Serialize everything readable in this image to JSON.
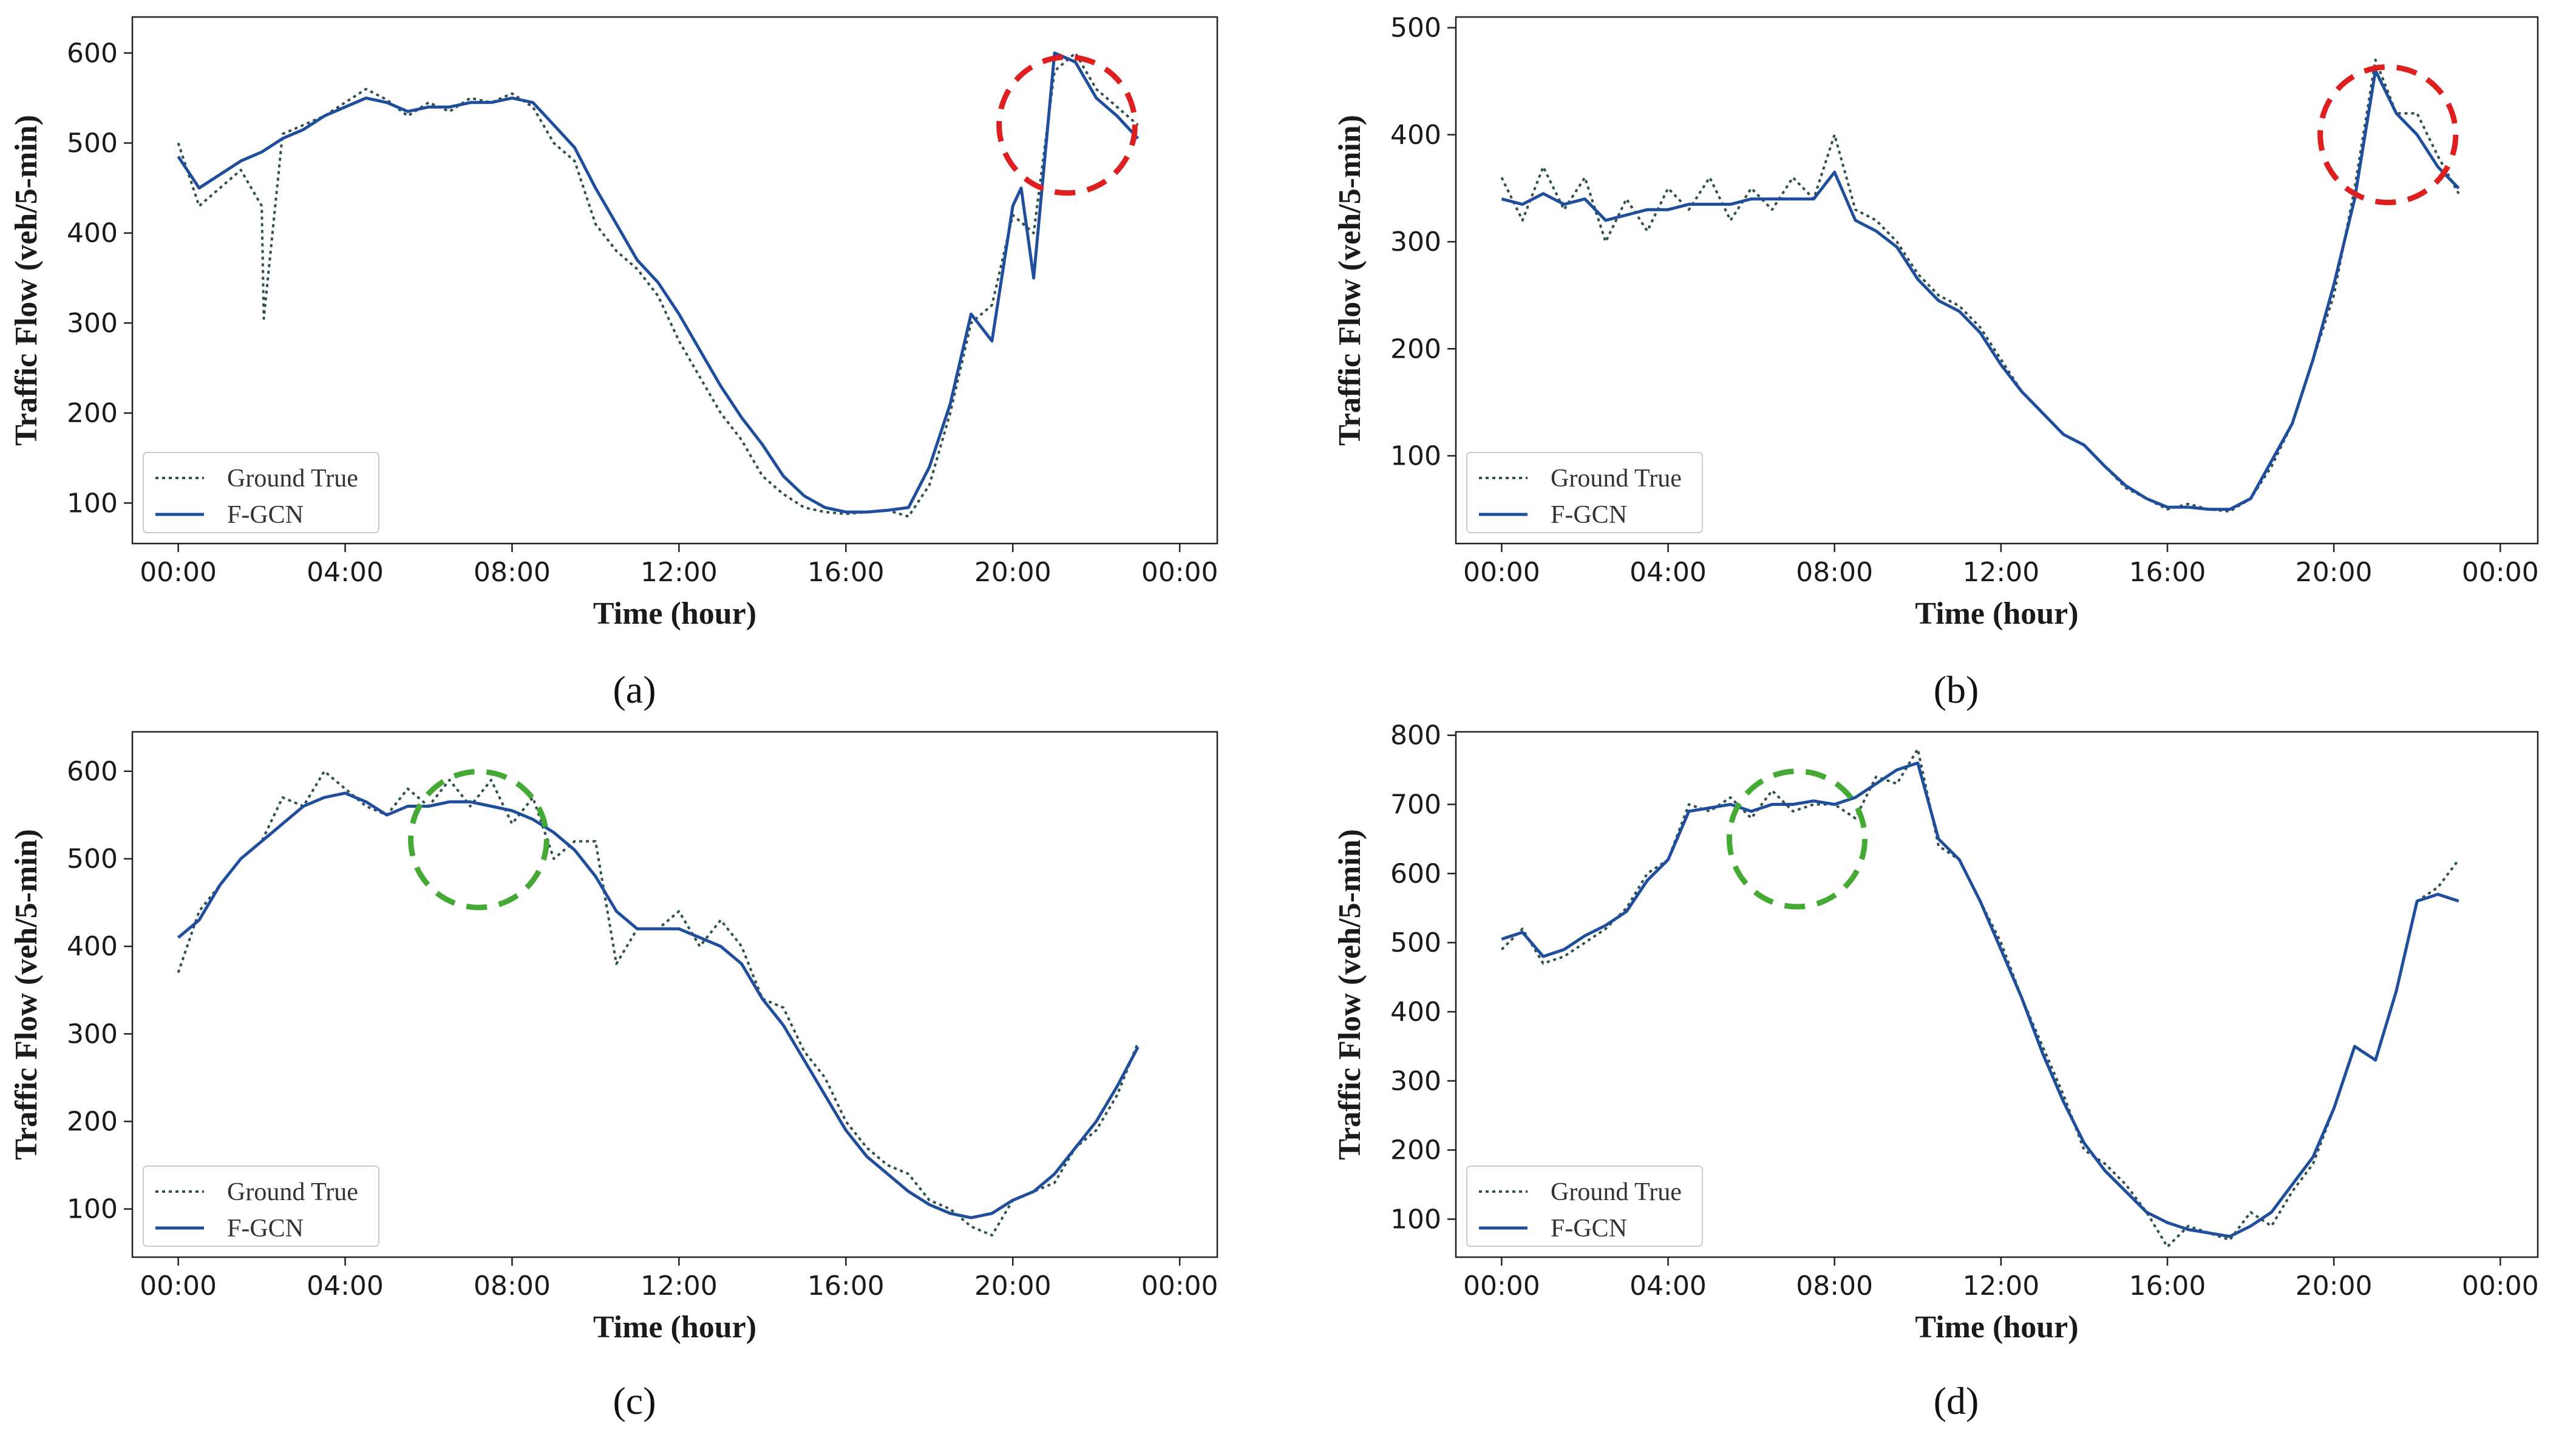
{
  "figure": {
    "colors": {
      "ground_true": "#2f4f4f",
      "fgcn": "#1f4e9c",
      "highlight_red": "#dd1f1f",
      "highlight_green": "#44aa33",
      "axes": "#222222"
    }
  },
  "chart_data": [
    {
      "panel": "a",
      "caption": "(a)",
      "type": "line",
      "xlabel": "Time (hour)",
      "ylabel": "Traffic Flow (veh/5-min)",
      "x_unit": "hour",
      "xlim": [
        -1.1,
        24.9
      ],
      "ylim": [
        55,
        640
      ],
      "xticks": [
        0,
        4,
        8,
        12,
        16,
        20,
        24
      ],
      "xtick_labels": [
        "00:00",
        "04:00",
        "08:00",
        "12:00",
        "16:00",
        "20:00",
        "00:00"
      ],
      "yticks": [
        100,
        200,
        300,
        400,
        500,
        600
      ],
      "ytick_labels": [
        "100",
        "200",
        "300",
        "400",
        "500",
        "600"
      ],
      "legend": {
        "position": "lower-left",
        "entries": [
          "Ground True",
          "F-GCN"
        ]
      },
      "highlight": {
        "type": "dashed-circle",
        "color": "red",
        "center": [
          21.3,
          520
        ],
        "radius_hours": 2.2
      },
      "series": [
        {
          "name": "Ground True",
          "style": "dotted",
          "x": [
            0,
            0.5,
            1,
            1.5,
            2,
            2.05,
            2.5,
            3,
            3.5,
            4,
            4.5,
            5,
            5.5,
            6,
            6.5,
            7,
            7.5,
            8,
            8.5,
            9,
            9.5,
            10,
            10.5,
            11,
            11.5,
            12,
            12.5,
            13,
            13.5,
            14,
            14.5,
            15,
            15.5,
            16,
            16.5,
            17,
            17.5,
            18,
            18.5,
            19,
            19.5,
            20,
            20.5,
            21,
            21.5,
            22,
            22.5,
            23
          ],
          "y": [
            500,
            430,
            450,
            470,
            430,
            305,
            510,
            520,
            530,
            545,
            560,
            548,
            530,
            545,
            535,
            550,
            545,
            555,
            540,
            500,
            480,
            410,
            380,
            360,
            330,
            280,
            240,
            200,
            170,
            130,
            110,
            95,
            90,
            88,
            90,
            92,
            85,
            120,
            200,
            300,
            320,
            420,
            400,
            580,
            600,
            560,
            540,
            520
          ]
        },
        {
          "name": "F-GCN",
          "style": "solid",
          "x": [
            0,
            0.5,
            1,
            1.5,
            2,
            2.5,
            3,
            3.5,
            4,
            4.5,
            5,
            5.5,
            6,
            6.5,
            7,
            7.5,
            8,
            8.5,
            9,
            9.5,
            10,
            10.5,
            11,
            11.5,
            12,
            12.5,
            13,
            13.5,
            14,
            14.5,
            15,
            15.5,
            16,
            16.5,
            17,
            17.5,
            18,
            18.5,
            19,
            19.5,
            20,
            20.2,
            20.5,
            21,
            21.5,
            22,
            22.5,
            23
          ],
          "y": [
            485,
            450,
            465,
            480,
            490,
            505,
            515,
            530,
            540,
            550,
            545,
            535,
            540,
            540,
            545,
            545,
            550,
            545,
            520,
            495,
            450,
            410,
            370,
            345,
            310,
            270,
            230,
            195,
            165,
            130,
            108,
            95,
            90,
            90,
            92,
            95,
            140,
            210,
            310,
            280,
            430,
            450,
            350,
            600,
            590,
            550,
            530,
            505
          ]
        }
      ]
    },
    {
      "panel": "b",
      "caption": "(b)",
      "type": "line",
      "xlabel": "Time (hour)",
      "ylabel": "Traffic Flow (veh/5-min)",
      "x_unit": "hour",
      "xlim": [
        -1.1,
        24.9
      ],
      "ylim": [
        18,
        510
      ],
      "xticks": [
        0,
        4,
        8,
        12,
        16,
        20,
        24
      ],
      "xtick_labels": [
        "00:00",
        "04:00",
        "08:00",
        "12:00",
        "16:00",
        "20:00",
        "00:00"
      ],
      "yticks": [
        100,
        200,
        300,
        400,
        500
      ],
      "ytick_labels": [
        "100",
        "200",
        "300",
        "400",
        "500"
      ],
      "legend": {
        "position": "lower-left",
        "entries": [
          "Ground True",
          "F-GCN"
        ]
      },
      "highlight": {
        "type": "dashed-circle",
        "color": "red",
        "center": [
          21.3,
          400
        ],
        "radius_hours": 2.2
      },
      "series": [
        {
          "name": "Ground True",
          "style": "dotted",
          "x": [
            0,
            0.5,
            1,
            1.5,
            2,
            2.5,
            3,
            3.5,
            4,
            4.5,
            5,
            5.5,
            6,
            6.5,
            7,
            7.5,
            8,
            8.5,
            9,
            9.5,
            10,
            10.5,
            11,
            11.5,
            12,
            12.5,
            13,
            13.5,
            14,
            14.5,
            15,
            15.5,
            16,
            16.5,
            17,
            17.5,
            18,
            18.5,
            19,
            19.5,
            20,
            20.5,
            21,
            21.5,
            22,
            22.5,
            23
          ],
          "y": [
            360,
            320,
            370,
            330,
            360,
            300,
            340,
            310,
            350,
            330,
            360,
            320,
            350,
            330,
            360,
            340,
            400,
            330,
            320,
            300,
            270,
            250,
            240,
            220,
            190,
            160,
            140,
            120,
            110,
            90,
            70,
            60,
            50,
            55,
            50,
            48,
            60,
            90,
            130,
            190,
            250,
            350,
            470,
            420,
            420,
            380,
            345
          ]
        },
        {
          "name": "F-GCN",
          "style": "solid",
          "x": [
            0,
            0.5,
            1,
            1.5,
            2,
            2.5,
            3,
            3.5,
            4,
            4.5,
            5,
            5.5,
            6,
            6.5,
            7,
            7.5,
            8,
            8.5,
            9,
            9.5,
            10,
            10.5,
            11,
            11.5,
            12,
            12.5,
            13,
            13.5,
            14,
            14.5,
            15,
            15.5,
            16,
            16.5,
            17,
            17.5,
            18,
            18.5,
            19,
            19.5,
            20,
            20.5,
            21,
            21.5,
            22,
            22.5,
            23
          ],
          "y": [
            340,
            335,
            345,
            335,
            340,
            320,
            325,
            330,
            330,
            335,
            335,
            335,
            340,
            340,
            340,
            340,
            365,
            320,
            310,
            295,
            265,
            245,
            235,
            215,
            185,
            160,
            140,
            120,
            110,
            90,
            72,
            60,
            52,
            52,
            50,
            50,
            60,
            95,
            130,
            190,
            260,
            340,
            460,
            420,
            400,
            370,
            350
          ]
        }
      ]
    },
    {
      "panel": "c",
      "caption": "(c)",
      "type": "line",
      "xlabel": "Time (hour)",
      "ylabel": "Traffic Flow (veh/5-min)",
      "x_unit": "hour",
      "xlim": [
        -1.1,
        24.9
      ],
      "ylim": [
        45,
        645
      ],
      "xticks": [
        0,
        4,
        8,
        12,
        16,
        20,
        24
      ],
      "xtick_labels": [
        "00:00",
        "04:00",
        "08:00",
        "12:00",
        "16:00",
        "20:00",
        "00:00"
      ],
      "yticks": [
        100,
        200,
        300,
        400,
        500,
        600
      ],
      "ytick_labels": [
        "100",
        "200",
        "300",
        "400",
        "500",
        "600"
      ],
      "legend": {
        "position": "lower-left",
        "entries": [
          "Ground True",
          "F-GCN"
        ]
      },
      "highlight": {
        "type": "dashed-circle",
        "color": "green",
        "center": [
          7.2,
          522
        ],
        "radius_hours": 2.2
      },
      "series": [
        {
          "name": "Ground True",
          "style": "dotted",
          "x": [
            0,
            0.5,
            1,
            1.5,
            2,
            2.5,
            3,
            3.5,
            4,
            4.5,
            5,
            5.5,
            6,
            6.5,
            7,
            7.5,
            8,
            8.5,
            9,
            9.5,
            10,
            10.5,
            11,
            11.5,
            12,
            12.5,
            13,
            13.5,
            14,
            14.5,
            15,
            15.5,
            16,
            16.5,
            17,
            17.5,
            18,
            18.5,
            19,
            19.5,
            20,
            20.5,
            21,
            21.5,
            22,
            22.5,
            23
          ],
          "y": [
            370,
            440,
            470,
            500,
            520,
            570,
            560,
            600,
            580,
            560,
            550,
            580,
            560,
            590,
            560,
            590,
            540,
            570,
            500,
            520,
            520,
            380,
            420,
            420,
            440,
            400,
            430,
            400,
            340,
            330,
            280,
            250,
            200,
            170,
            150,
            140,
            110,
            100,
            80,
            70,
            110,
            120,
            130,
            170,
            190,
            230,
            290
          ]
        },
        {
          "name": "F-GCN",
          "style": "solid",
          "x": [
            0,
            0.5,
            1,
            1.5,
            2,
            2.5,
            3,
            3.5,
            4,
            4.5,
            5,
            5.5,
            6,
            6.5,
            7,
            7.5,
            8,
            8.5,
            9,
            9.5,
            10,
            10.5,
            11,
            11.5,
            12,
            12.5,
            13,
            13.5,
            14,
            14.5,
            15,
            15.5,
            16,
            16.5,
            17,
            17.5,
            18,
            18.5,
            19,
            19.5,
            20,
            20.5,
            21,
            21.5,
            22,
            22.5,
            23
          ],
          "y": [
            410,
            430,
            470,
            500,
            520,
            540,
            560,
            570,
            575,
            565,
            550,
            560,
            560,
            565,
            565,
            560,
            555,
            545,
            530,
            510,
            480,
            440,
            420,
            420,
            420,
            410,
            400,
            380,
            340,
            310,
            270,
            230,
            190,
            160,
            140,
            120,
            105,
            95,
            90,
            95,
            110,
            120,
            140,
            170,
            200,
            240,
            285
          ]
        }
      ]
    },
    {
      "panel": "d",
      "caption": "(d)",
      "type": "line",
      "xlabel": "Time (hour)",
      "ylabel": "Traffic Flow (veh/5-min)",
      "x_unit": "hour",
      "xlim": [
        -1.1,
        24.9
      ],
      "ylim": [
        45,
        805
      ],
      "xticks": [
        0,
        4,
        8,
        12,
        16,
        20,
        24
      ],
      "xtick_labels": [
        "00:00",
        "04:00",
        "08:00",
        "12:00",
        "16:00",
        "20:00",
        "00:00"
      ],
      "yticks": [
        100,
        200,
        300,
        400,
        500,
        600,
        700,
        800
      ],
      "ytick_labels": [
        "100",
        "200",
        "300",
        "400",
        "500",
        "600",
        "700",
        "800"
      ],
      "legend": {
        "position": "lower-left",
        "entries": [
          "Ground True",
          "F-GCN"
        ]
      },
      "highlight": {
        "type": "dashed-circle",
        "color": "green",
        "center": [
          7.1,
          650
        ],
        "radius_hours": 2.2
      },
      "series": [
        {
          "name": "Ground True",
          "style": "dotted",
          "x": [
            0,
            0.5,
            1,
            1.5,
            2,
            2.5,
            3,
            3.5,
            4,
            4.5,
            5,
            5.5,
            6,
            6.5,
            7,
            7.5,
            8,
            8.5,
            9,
            9.5,
            10,
            10.5,
            11,
            11.5,
            12,
            12.5,
            13,
            13.5,
            14,
            14.5,
            15,
            15.5,
            16,
            16.5,
            17,
            17.5,
            18,
            18.5,
            19,
            19.5,
            20,
            20.5,
            21,
            21.5,
            22,
            22.5,
            23
          ],
          "y": [
            490,
            520,
            470,
            480,
            500,
            520,
            550,
            600,
            620,
            700,
            690,
            710,
            680,
            720,
            690,
            700,
            700,
            680,
            740,
            730,
            780,
            640,
            620,
            560,
            500,
            420,
            350,
            280,
            200,
            180,
            150,
            110,
            60,
            90,
            80,
            70,
            110,
            90,
            140,
            180,
            260,
            350,
            330,
            430,
            560,
            580,
            620
          ]
        },
        {
          "name": "F-GCN",
          "style": "solid",
          "x": [
            0,
            0.5,
            1,
            1.5,
            2,
            2.5,
            3,
            3.5,
            4,
            4.5,
            5,
            5.5,
            6,
            6.5,
            7,
            7.5,
            8,
            8.5,
            9,
            9.5,
            10,
            10.5,
            11,
            11.5,
            12,
            12.5,
            13,
            13.5,
            14,
            14.5,
            15,
            15.5,
            16,
            16.5,
            17,
            17.5,
            18,
            18.5,
            19,
            19.5,
            20,
            20.5,
            21,
            21.5,
            22,
            22.5,
            23
          ],
          "y": [
            505,
            515,
            480,
            490,
            510,
            525,
            545,
            590,
            620,
            690,
            695,
            700,
            690,
            700,
            700,
            705,
            700,
            710,
            730,
            750,
            760,
            650,
            620,
            560,
            490,
            420,
            340,
            270,
            210,
            170,
            140,
            110,
            95,
            85,
            80,
            75,
            90,
            110,
            150,
            190,
            260,
            350,
            330,
            430,
            560,
            570,
            560
          ]
        }
      ]
    }
  ]
}
